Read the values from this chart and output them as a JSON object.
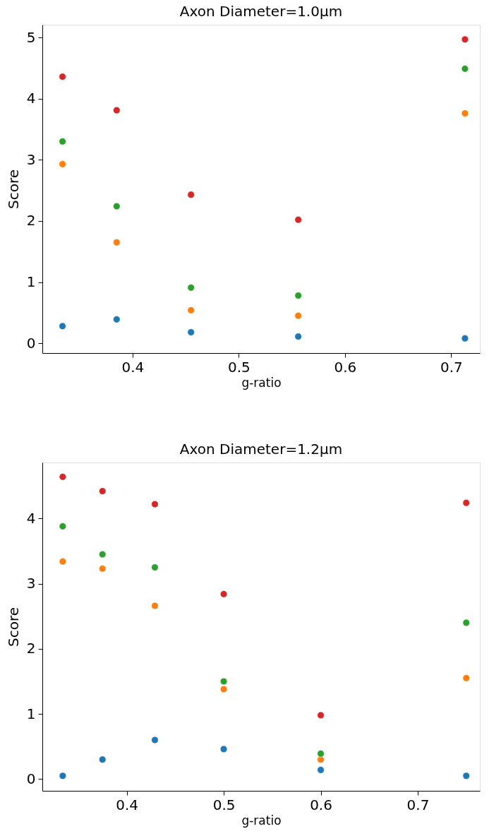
{
  "chart_data": [
    {
      "type": "scatter",
      "title": "Axon Diameter=1.0μm",
      "xlabel": "g-ratio",
      "ylabel": "Score",
      "marker": "circle",
      "grid": false,
      "legend": false,
      "xlim": [
        0.315,
        0.727
      ],
      "ylim": [
        -0.16,
        5.21
      ],
      "xticks": [
        0.4,
        0.5,
        0.6,
        0.7
      ],
      "yticks": [
        0,
        1,
        2,
        3,
        4,
        5
      ],
      "x": [
        0.334,
        0.385,
        0.455,
        0.556,
        0.713
      ],
      "series": [
        {
          "color": "#1f77b4",
          "values": [
            0.28,
            0.39,
            0.18,
            0.11,
            0.08
          ]
        },
        {
          "color": "#ff7f0e",
          "values": [
            2.93,
            1.65,
            0.54,
            0.45,
            3.76
          ]
        },
        {
          "color": "#2ca02c",
          "values": [
            3.3,
            2.24,
            0.91,
            0.78,
            4.49
          ]
        },
        {
          "color": "#d62728",
          "values": [
            4.36,
            3.81,
            2.43,
            2.02,
            4.97
          ]
        }
      ]
    },
    {
      "type": "scatter",
      "title": "Axon Diameter=1.2μm",
      "xlabel": "g-ratio",
      "ylabel": "Score",
      "marker": "circle",
      "grid": false,
      "legend": false,
      "xlim": [
        0.313,
        0.764
      ],
      "ylim": [
        -0.18,
        4.86
      ],
      "xticks": [
        0.4,
        0.5,
        0.6,
        0.7
      ],
      "yticks": [
        0,
        1,
        2,
        3,
        4
      ],
      "x": [
        0.334,
        0.375,
        0.429,
        0.5,
        0.6,
        0.75
      ],
      "series": [
        {
          "color": "#1f77b4",
          "values": [
            0.05,
            0.3,
            0.6,
            0.46,
            0.14,
            0.05
          ]
        },
        {
          "color": "#ff7f0e",
          "values": [
            3.34,
            3.23,
            2.66,
            1.38,
            0.3,
            1.55
          ]
        },
        {
          "color": "#2ca02c",
          "values": [
            3.88,
            3.45,
            3.25,
            1.5,
            0.39,
            2.4
          ]
        },
        {
          "color": "#d62728",
          "values": [
            4.64,
            4.42,
            4.22,
            2.84,
            0.98,
            4.24
          ]
        }
      ]
    }
  ]
}
